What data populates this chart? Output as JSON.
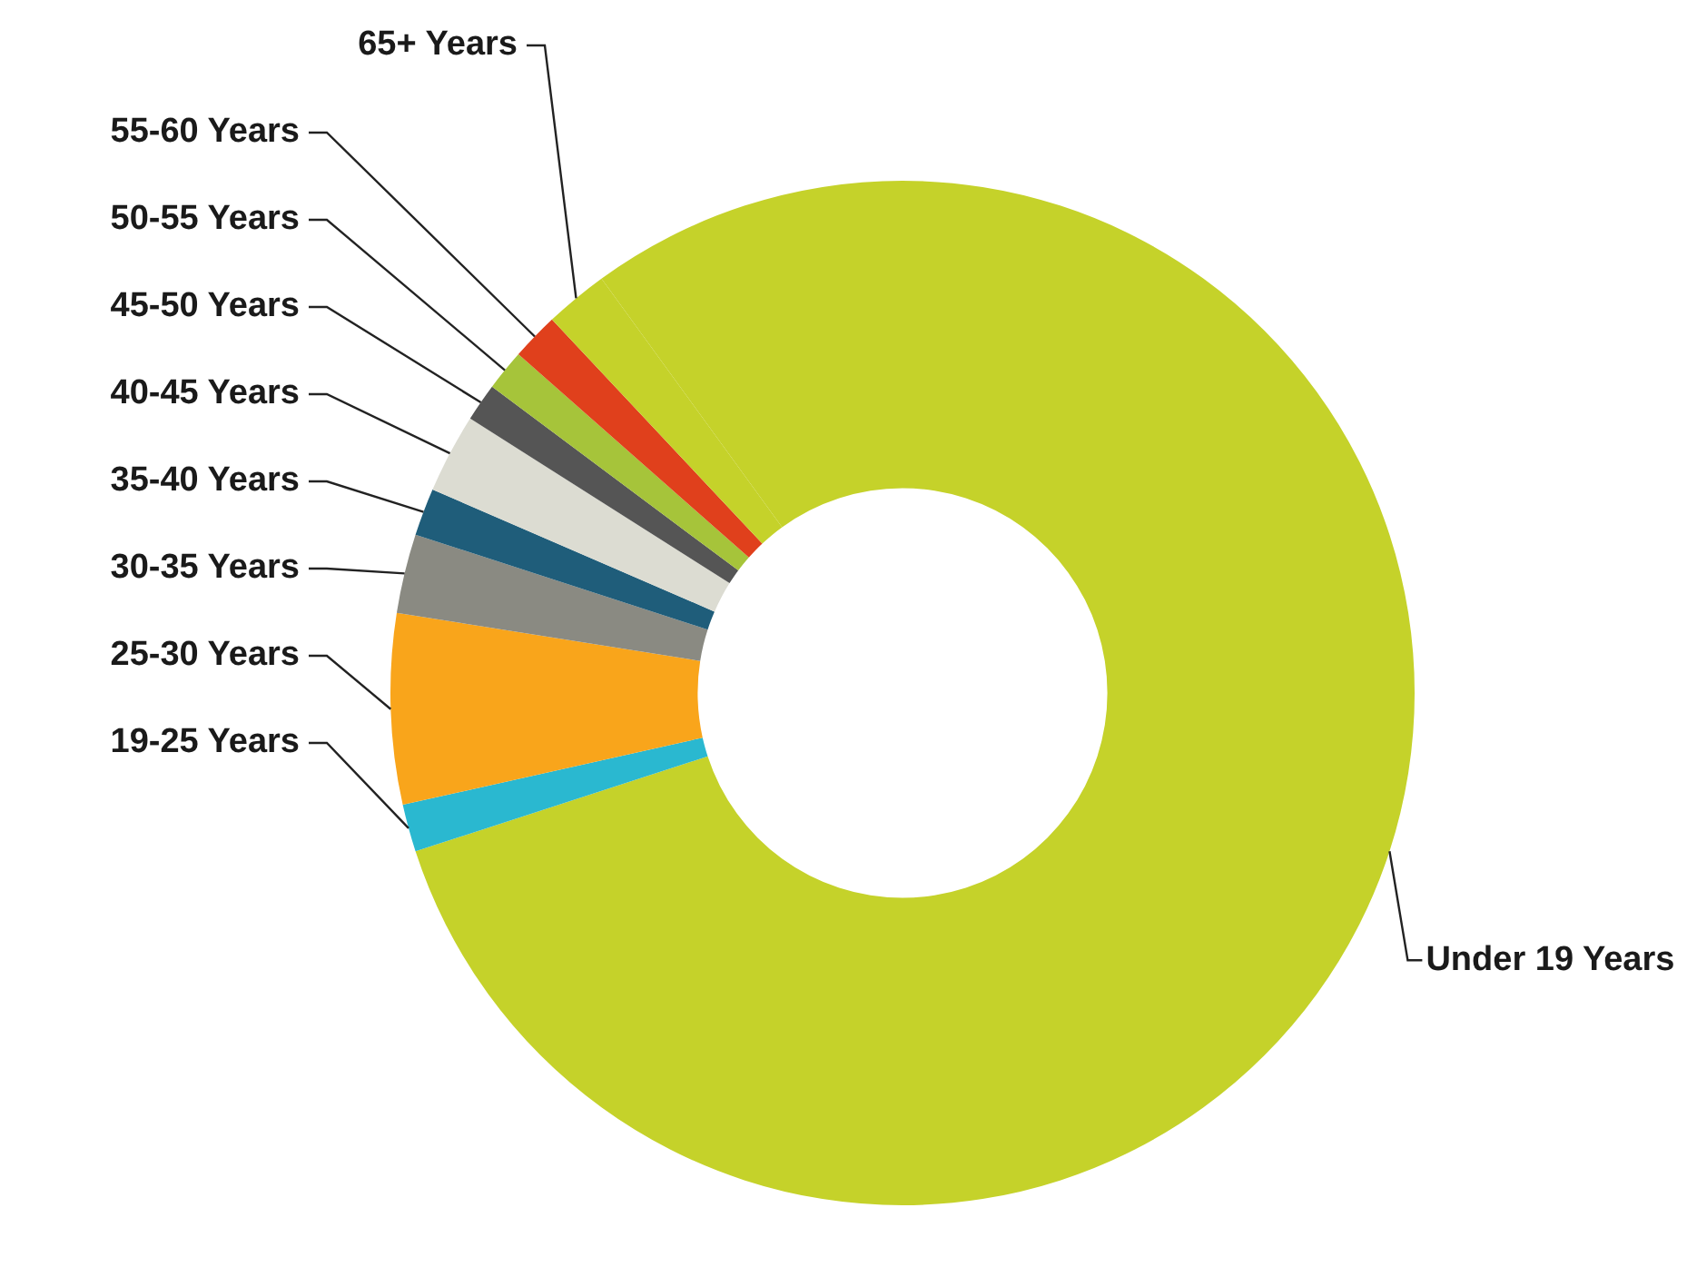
{
  "chart_data": {
    "type": "donut",
    "categories": [
      "Under 19 Years",
      "19-25 Years",
      "25-30 Years",
      "30-35 Years",
      "35-40 Years",
      "40-45 Years",
      "45-50 Years",
      "50-55 Years",
      "55-60 Years",
      "65+ Years"
    ],
    "values": [
      80,
      1.5,
      6,
      2.5,
      1.5,
      2.5,
      1.2,
      1.3,
      1.5,
      2
    ],
    "colors": [
      "#c5d22a",
      "#2ab8d0",
      "#f9a51b",
      "#8a8a82",
      "#1f5d7a",
      "#dcdcd2",
      "#555555",
      "#a6c43a",
      "#e0401c",
      "#c5d22a"
    ],
    "legend": false
  }
}
